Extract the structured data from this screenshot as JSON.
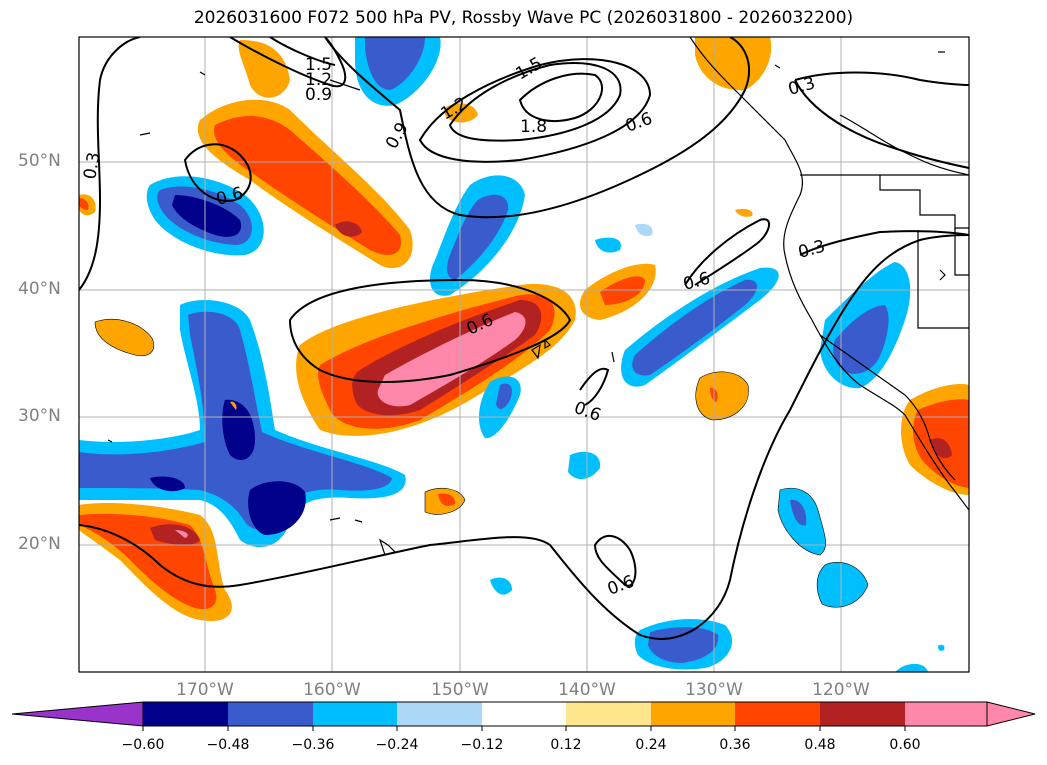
{
  "title": "2026031600 F072 500 hPa PV, Rossby Wave PC (2026031800 - 2026032200)",
  "lat_labels": [
    "50°N",
    "40°N",
    "30°N",
    "20°N"
  ],
  "lon_labels": [
    "170°W",
    "160°W",
    "150°W",
    "140°W",
    "130°W",
    "120°W"
  ],
  "contour_labels": [
    "1.5",
    "1.2",
    "0.9",
    "1.5",
    "1.2",
    "1.8",
    "0.9",
    "0.6",
    "0.3",
    "0.3",
    "0.6",
    "0.6",
    "0.3",
    "0.6",
    "0.6",
    "0.6"
  ],
  "colorbar": {
    "ticks": [
      "−0.60",
      "−0.48",
      "−0.36",
      "−0.24",
      "−0.12",
      "0.12",
      "0.24",
      "0.36",
      "0.48",
      "0.60"
    ],
    "colors": [
      "#9933cc",
      "#00008b",
      "#3a5bcc",
      "#00bfff",
      "#add8f7",
      "#ffffff",
      "#ffe68c",
      "#ffa500",
      "#ff4500",
      "#b22222",
      "#ff88aa"
    ]
  },
  "colors": {
    "grid": "#b0b0b0",
    "contour": "#000000",
    "axis_label": "#808080"
  }
}
